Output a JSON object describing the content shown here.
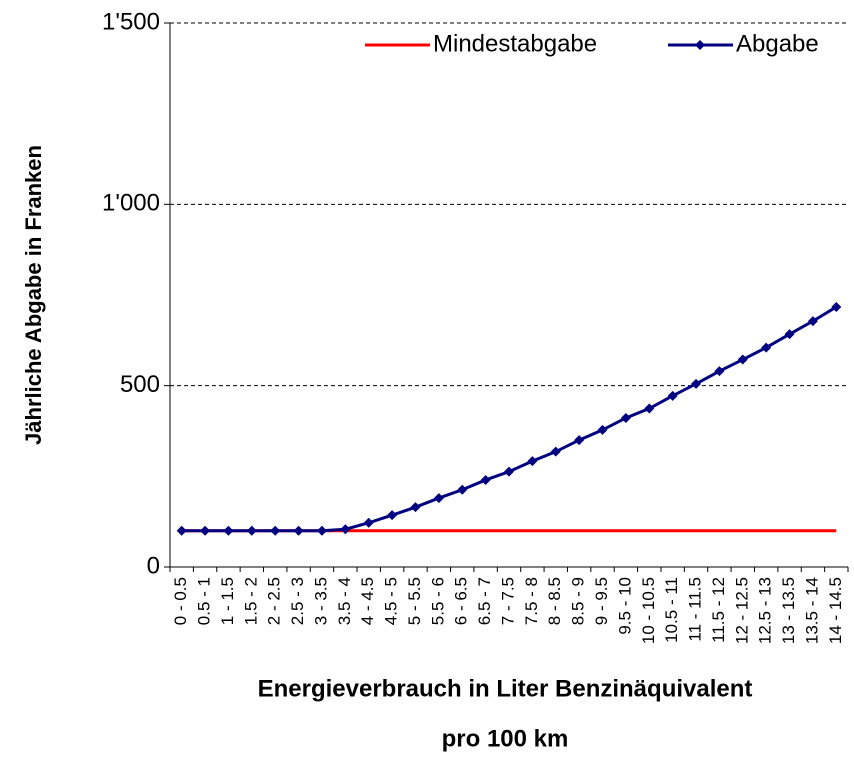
{
  "chart_data": {
    "type": "line",
    "y_label": "Jährliche Abgabe in Franken",
    "x_label": [
      "Energieverbrauch in Liter Benzinäquivalent",
      "pro 100 km"
    ],
    "categories": [
      "0 - 0.5",
      "0.5 - 1",
      "1 - 1.5",
      "1.5 - 2",
      "2 - 2.5",
      "2.5 - 3",
      "3 - 3.5",
      "3.5 - 4",
      "4 - 4.5",
      "4.5 - 5",
      "5 - 5.5",
      "5.5 - 6",
      "6 - 6.5",
      "6.5 - 7",
      "7 - 7.5",
      "7.5 - 8",
      "8 - 8.5",
      "8.5 - 9",
      "9 - 9.5",
      "9.5 - 10",
      "10 - 10.5",
      "10.5 - 11",
      "11 - 11.5",
      "11.5 - 12",
      "12 - 12.5",
      "12.5 - 13",
      "13 - 13.5",
      "13.5 - 14",
      "14 - 14.5"
    ],
    "series": [
      {
        "name": "Mindestabgabe",
        "color": "#ff0000",
        "marker": false,
        "values": [
          100,
          100,
          100,
          100,
          100,
          100,
          100,
          100,
          100,
          100,
          100,
          100,
          100,
          100,
          100,
          100,
          100,
          100,
          100,
          100,
          100,
          100,
          100,
          100,
          100,
          100,
          100,
          100,
          100
        ]
      },
      {
        "name": "Abgabe",
        "color": "#000080",
        "marker": true,
        "values": [
          100,
          100,
          100,
          100,
          100,
          100,
          100,
          104,
          122,
          143,
          165,
          190,
          213,
          240,
          263,
          292,
          318,
          350,
          378,
          411,
          437,
          472,
          505,
          540,
          572,
          605,
          642,
          678,
          717
        ]
      }
    ],
    "ylim": [
      0,
      1500
    ],
    "yticks": [
      0,
      500,
      {
        "value": 1000,
        "label": "1'000"
      },
      {
        "value": 1500,
        "label": "1'500"
      }
    ],
    "grid": true,
    "legend": "top-right"
  }
}
